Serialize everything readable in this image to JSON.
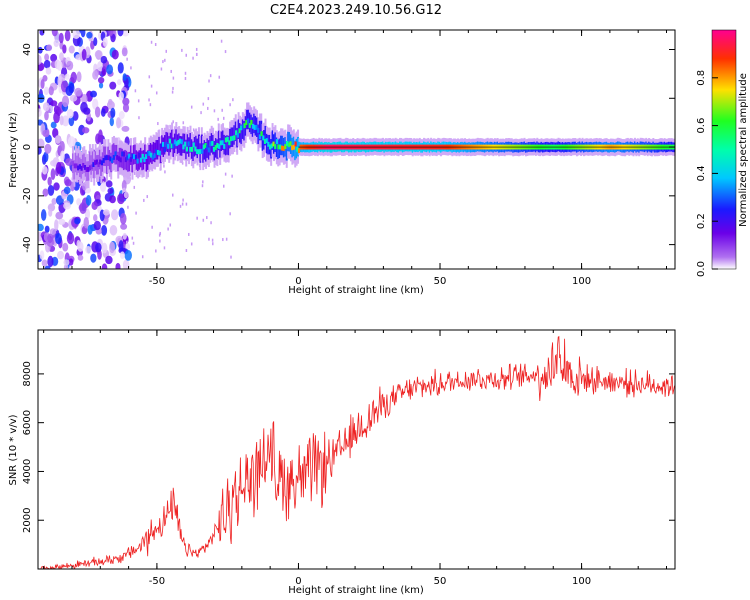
{
  "title": "C2E4.2023.249.10.56.G12",
  "chart_data": [
    {
      "type": "heatmap",
      "xlabel": "Height of straight line (km)",
      "ylabel": "Frequency (Hz)",
      "xlim": [
        -92,
        133
      ],
      "ylim": [
        -50,
        48
      ],
      "xticks": [
        -50,
        0,
        50,
        100
      ],
      "yticks": [
        -40,
        -20,
        0,
        20,
        40
      ],
      "colorbar": {
        "label": "Normalized spectral amplitude",
        "range": [
          0.0,
          1.0
        ],
        "ticks": [
          "0.0",
          "0.2",
          "0.4",
          "0.6",
          "0.8"
        ],
        "colors": [
          "#dcc8f5",
          "#7a00e0",
          "#2020ff",
          "#00c8ff",
          "#00ff60",
          "#ffe000",
          "#ff5000",
          "#ff0080"
        ]
      },
      "ridge": {
        "description_points_x": [
          -75,
          -65,
          -55,
          -45,
          -35,
          -25,
          -18,
          -10,
          0,
          10,
          50,
          90,
          110,
          133
        ],
        "frequency_hz": [
          -8,
          -4,
          -5,
          2,
          -1,
          2,
          10,
          1,
          0,
          0,
          0,
          0,
          0,
          0
        ],
        "amplitude": [
          0.2,
          0.3,
          0.4,
          0.45,
          0.5,
          0.5,
          0.55,
          0.6,
          0.85,
          0.95,
          0.9,
          0.6,
          0.8,
          0.6
        ]
      }
    },
    {
      "type": "line",
      "xlabel": "Height of straight line (km)",
      "ylabel": "SNR (10 * v/v)",
      "xlim": [
        -92,
        133
      ],
      "ylim": [
        0,
        9800
      ],
      "xticks": [
        -50,
        0,
        50,
        100
      ],
      "yticks": [
        2000,
        4000,
        6000,
        8000
      ],
      "series": [
        {
          "color": "#ee2222",
          "x": [
            -92,
            -80,
            -70,
            -62,
            -56,
            -50,
            -46,
            -44,
            -42,
            -40,
            -36,
            -32,
            -28,
            -24,
            -20,
            -16,
            -12,
            -10,
            -8,
            -4,
            0,
            4,
            8,
            12,
            16,
            20,
            25,
            30,
            35,
            40,
            50,
            60,
            70,
            80,
            88,
            92,
            95,
            100,
            110,
            115,
            120,
            125,
            133
          ],
          "y": [
            0,
            150,
            300,
            500,
            900,
            1700,
            2200,
            2700,
            1500,
            800,
            600,
            1000,
            1800,
            2600,
            3300,
            3800,
            4600,
            5200,
            3800,
            3600,
            3700,
            3900,
            4200,
            4500,
            5000,
            5600,
            6200,
            6700,
            7100,
            7400,
            7600,
            7800,
            7800,
            7900,
            8100,
            8500,
            8000,
            7800,
            7700,
            7650,
            7600,
            7550,
            7500
          ]
        }
      ]
    }
  ]
}
